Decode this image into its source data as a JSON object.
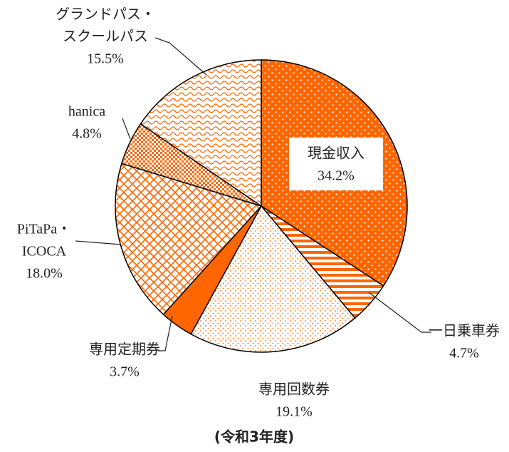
{
  "chart_data": {
    "type": "pie",
    "title": "(令和3年度)",
    "categories": [
      [
        "現金収入"
      ],
      [
        "一日乗車券"
      ],
      [
        "専用回数券"
      ],
      [
        "専用定期券"
      ],
      [
        "PiTaPa・",
        "ICOCA"
      ],
      [
        "hanica"
      ],
      [
        "グランドパス・",
        "スクールパス"
      ]
    ],
    "values": [
      34.2,
      4.7,
      19.1,
      3.7,
      18.0,
      4.8,
      15.5
    ],
    "value_labels": [
      "34.2%",
      "4.7%",
      "19.1%",
      "3.7%",
      "18.0%",
      "4.8%",
      "15.5%"
    ],
    "color": "#ff6600"
  }
}
